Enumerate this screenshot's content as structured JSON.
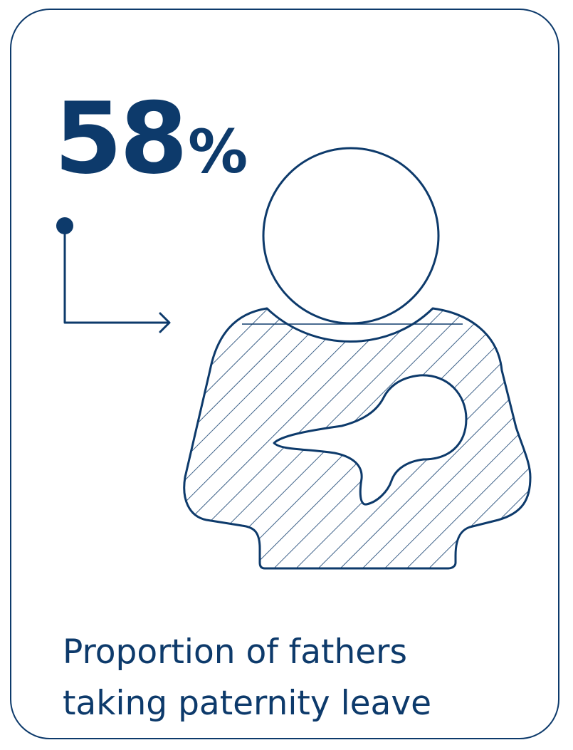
{
  "stat": {
    "number": "58",
    "unit": "%"
  },
  "caption": {
    "line1": "Proportion of fathers",
    "line2": "taking paternity leave"
  },
  "illustration": {
    "icons": [
      "pointer-arrow-icon",
      "father-holding-baby-icon"
    ]
  },
  "colors": {
    "primary": "#0d3a6b",
    "background": "#ffffff"
  }
}
